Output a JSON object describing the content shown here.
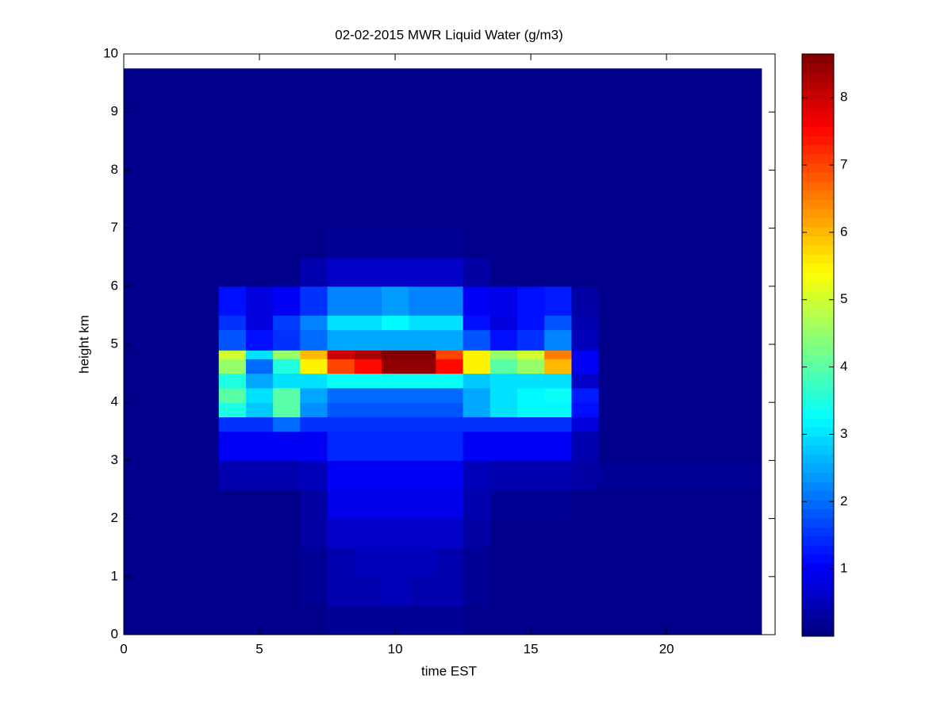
{
  "chart_data": {
    "type": "heatmap",
    "title": "02-02-2015 MWR Liquid Water (g/m3)",
    "x_label": "time EST",
    "y_label": "height km",
    "xlim": [
      0,
      24
    ],
    "xticks": [
      0,
      5,
      10,
      15,
      20
    ],
    "ylim": [
      0,
      10
    ],
    "yticks": [
      0,
      1,
      2,
      3,
      4,
      5,
      6,
      7,
      8,
      9,
      10
    ],
    "x_bins": [
      0,
      0.5,
      1.5,
      2.5,
      3.5,
      4.5,
      5.5,
      6.5,
      7.5,
      8.5,
      9.5,
      10.5,
      11.5,
      12.5,
      13.5,
      14.5,
      15.5,
      16.5,
      17.5,
      18.5,
      19.5,
      20.5,
      21.5,
      22.5,
      23.5
    ],
    "y_bins": [
      0,
      0.5,
      1,
      1.5,
      2,
      2.5,
      3,
      3.5,
      3.75,
      4,
      4.25,
      4.5,
      4.75,
      4.9,
      5.25,
      5.5,
      6,
      6.5,
      7,
      8,
      9,
      9.75
    ],
    "colormap": "jet",
    "clim": [
      0,
      8.65
    ],
    "colorbar_ticks": [
      1,
      2,
      3,
      4,
      5,
      6,
      7,
      8
    ],
    "values": [
      [
        0.1,
        0.1,
        0.1,
        0.1,
        0.1,
        0.1,
        0.1,
        0.1,
        0.2,
        0.2,
        0.2,
        0.2,
        0.2,
        0.1,
        0.1,
        0.1,
        0.1,
        0.1,
        0.1,
        0.1,
        0.1,
        0.1,
        0.1,
        0.1
      ],
      [
        0.1,
        0.1,
        0.1,
        0.1,
        0.1,
        0.1,
        0.1,
        0.2,
        0.4,
        0.4,
        0.5,
        0.4,
        0.4,
        0.2,
        0.1,
        0.1,
        0.1,
        0.1,
        0.1,
        0.1,
        0.1,
        0.1,
        0.1,
        0.1
      ],
      [
        0.1,
        0.1,
        0.1,
        0.1,
        0.1,
        0.1,
        0.1,
        0.2,
        0.4,
        0.5,
        0.5,
        0.5,
        0.4,
        0.2,
        0.1,
        0.1,
        0.1,
        0.1,
        0.1,
        0.1,
        0.1,
        0.1,
        0.1,
        0.1
      ],
      [
        0.1,
        0.1,
        0.1,
        0.1,
        0.1,
        0.1,
        0.1,
        0.3,
        0.6,
        0.6,
        0.6,
        0.6,
        0.6,
        0.3,
        0.1,
        0.1,
        0.1,
        0.1,
        0.1,
        0.1,
        0.1,
        0.1,
        0.1,
        0.1
      ],
      [
        0.1,
        0.1,
        0.1,
        0.1,
        0.1,
        0.1,
        0.1,
        0.3,
        0.9,
        0.9,
        0.9,
        0.9,
        0.9,
        0.4,
        0.2,
        0.2,
        0.2,
        0.1,
        0.1,
        0.1,
        0.1,
        0.1,
        0.1,
        0.1
      ],
      [
        0.1,
        0.1,
        0.1,
        0.1,
        0.4,
        0.4,
        0.4,
        0.5,
        1.0,
        1.0,
        1.0,
        1.0,
        1.0,
        0.5,
        0.4,
        0.4,
        0.4,
        0.3,
        0.2,
        0.2,
        0.2,
        0.2,
        0.2,
        0.2
      ],
      [
        0.1,
        0.1,
        0.1,
        0.1,
        1.0,
        1.0,
        1.0,
        1.0,
        1.4,
        1.4,
        1.4,
        1.4,
        1.4,
        1.0,
        1.0,
        1.0,
        1.0,
        0.4,
        0.1,
        0.1,
        0.1,
        0.1,
        0.1,
        0.1
      ],
      [
        0.1,
        0.1,
        0.1,
        0.1,
        1.5,
        1.5,
        2.0,
        1.5,
        1.5,
        1.5,
        1.5,
        1.5,
        1.5,
        1.5,
        1.5,
        1.5,
        1.5,
        0.8,
        0.1,
        0.1,
        0.1,
        0.1,
        0.1,
        0.1
      ],
      [
        0.1,
        0.1,
        0.1,
        0.1,
        3.5,
        2.8,
        4.0,
        2.3,
        1.8,
        1.8,
        1.8,
        1.8,
        1.8,
        2.5,
        3.0,
        3.2,
        3.2,
        1.2,
        0.1,
        0.1,
        0.1,
        0.1,
        0.1,
        0.1
      ],
      [
        0.1,
        0.1,
        0.1,
        0.1,
        4.0,
        3.0,
        4.0,
        2.5,
        2.0,
        2.0,
        2.0,
        2.0,
        2.0,
        2.5,
        3.0,
        3.2,
        3.3,
        1.3,
        0.1,
        0.1,
        0.1,
        0.1,
        0.1,
        0.1
      ],
      [
        0.1,
        0.1,
        0.1,
        0.1,
        3.5,
        2.5,
        3.0,
        3.0,
        3.3,
        3.3,
        3.3,
        3.3,
        3.3,
        2.8,
        3.0,
        3.0,
        3.0,
        0.6,
        0.1,
        0.1,
        0.1,
        0.1,
        0.1,
        0.1
      ],
      [
        0.1,
        0.1,
        0.1,
        0.1,
        4.5,
        2.0,
        3.5,
        5.5,
        7.0,
        7.5,
        8.5,
        8.5,
        7.5,
        5.5,
        4.0,
        4.5,
        6.0,
        1.0,
        0.1,
        0.1,
        0.1,
        0.1,
        0.1,
        0.1
      ],
      [
        0.1,
        0.1,
        0.1,
        0.1,
        5.0,
        3.0,
        4.5,
        6.0,
        8.0,
        8.3,
        8.6,
        8.6,
        7.0,
        5.5,
        4.5,
        5.0,
        6.5,
        1.0,
        0.1,
        0.1,
        0.1,
        0.1,
        0.1,
        0.1
      ],
      [
        0.1,
        0.1,
        0.1,
        0.1,
        1.8,
        1.2,
        1.5,
        2.0,
        2.5,
        2.5,
        2.5,
        2.5,
        2.5,
        1.8,
        1.2,
        1.5,
        2.2,
        0.5,
        0.1,
        0.1,
        0.1,
        0.1,
        0.1,
        0.1
      ],
      [
        0.1,
        0.1,
        0.1,
        0.1,
        1.5,
        0.8,
        1.6,
        2.2,
        3.0,
        3.0,
        3.2,
        3.0,
        3.0,
        1.2,
        0.8,
        1.2,
        1.8,
        0.4,
        0.1,
        0.1,
        0.1,
        0.1,
        0.1,
        0.1
      ],
      [
        0.1,
        0.1,
        0.1,
        0.1,
        1.2,
        0.8,
        1.0,
        1.5,
        2.2,
        2.2,
        2.4,
        2.2,
        2.2,
        1.0,
        0.9,
        1.2,
        1.3,
        0.3,
        0.1,
        0.1,
        0.1,
        0.1,
        0.1,
        0.1
      ],
      [
        0.1,
        0.1,
        0.1,
        0.1,
        0.1,
        0.1,
        0.1,
        0.4,
        0.6,
        0.6,
        0.6,
        0.6,
        0.6,
        0.3,
        0.1,
        0.1,
        0.1,
        0.1,
        0.1,
        0.1,
        0.1,
        0.1,
        0.1,
        0.1
      ],
      [
        0.1,
        0.1,
        0.1,
        0.1,
        0.1,
        0.1,
        0.1,
        0.1,
        0.2,
        0.2,
        0.2,
        0.2,
        0.2,
        0.1,
        0.1,
        0.1,
        0.1,
        0.1,
        0.1,
        0.1,
        0.1,
        0.1,
        0.1,
        0.1
      ],
      [
        0.1,
        0.1,
        0.1,
        0.1,
        0.1,
        0.1,
        0.1,
        0.1,
        0.1,
        0.1,
        0.1,
        0.1,
        0.1,
        0.1,
        0.1,
        0.1,
        0.1,
        0.1,
        0.1,
        0.1,
        0.1,
        0.1,
        0.1,
        0.1
      ],
      [
        0.1,
        0.1,
        0.1,
        0.1,
        0.1,
        0.1,
        0.1,
        0.1,
        0.1,
        0.1,
        0.1,
        0.1,
        0.1,
        0.1,
        0.1,
        0.1,
        0.1,
        0.1,
        0.1,
        0.1,
        0.1,
        0.1,
        0.1,
        0.1
      ],
      [
        0.1,
        0.1,
        0.1,
        0.1,
        0.1,
        0.1,
        0.1,
        0.1,
        0.1,
        0.1,
        0.1,
        0.1,
        0.1,
        0.1,
        0.1,
        0.1,
        0.1,
        0.1,
        0.1,
        0.1,
        0.1,
        0.1,
        0.1,
        0.1
      ]
    ]
  }
}
